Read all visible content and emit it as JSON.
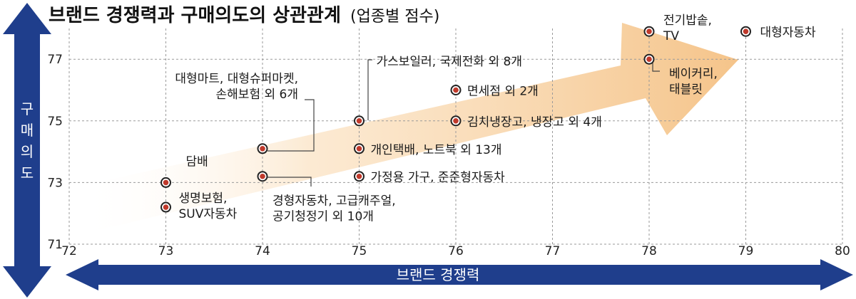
{
  "chart_data": {
    "type": "scatter",
    "title": "브랜드 경쟁력과 구매의도의 상관관계",
    "subtitle": "(업종별 점수)",
    "xlabel": "브랜드 경쟁력",
    "ylabel": "구매의도",
    "xlim": [
      72,
      80
    ],
    "ylim": [
      71,
      78
    ],
    "x_ticks": [
      72,
      73,
      74,
      75,
      76,
      77,
      78,
      79,
      80
    ],
    "y_ticks": [
      71,
      73,
      75,
      77
    ],
    "grid": "dashed",
    "marker_color": "#c0392b",
    "accent_color": "#1f3e8c",
    "trend_arrow_color": "#f5c48a",
    "points": [
      {
        "x": 78,
        "y": 77.9,
        "label": [
          "전기밥솥,",
          "TV"
        ]
      },
      {
        "x": 79,
        "y": 77.9,
        "label": [
          "대형자동차"
        ]
      },
      {
        "x": 78,
        "y": 77.0,
        "label": [
          "베이커리,",
          "태블릿"
        ]
      },
      {
        "x": 75,
        "y": 75.0,
        "label": [
          "가스보일러, 국제전화 외 8개"
        ]
      },
      {
        "x": 76,
        "y": 76.0,
        "label": [
          "면세점 외 2개"
        ]
      },
      {
        "x": 76,
        "y": 75.0,
        "label": [
          "김치냉장고, 냉장고 외 4개"
        ]
      },
      {
        "x": 75,
        "y": 74.1,
        "label": [
          "개인택배, 노트북 외 13개"
        ]
      },
      {
        "x": 75,
        "y": 73.2,
        "label": [
          "가정용 가구, 준준형자동차"
        ]
      },
      {
        "x": 74,
        "y": 74.1,
        "label": [
          "대형마트, 대형슈퍼마켓,",
          "손해보험 외 6개"
        ]
      },
      {
        "x": 74,
        "y": 73.2,
        "label": [
          "경형자동차, 고급캐주얼,",
          "공기청정기 외 10개"
        ]
      },
      {
        "x": 73,
        "y": 73.0,
        "label": [
          "담배"
        ]
      },
      {
        "x": 73,
        "y": 72.2,
        "label": [
          "생명보험,",
          "SUV자동차"
        ]
      }
    ]
  }
}
